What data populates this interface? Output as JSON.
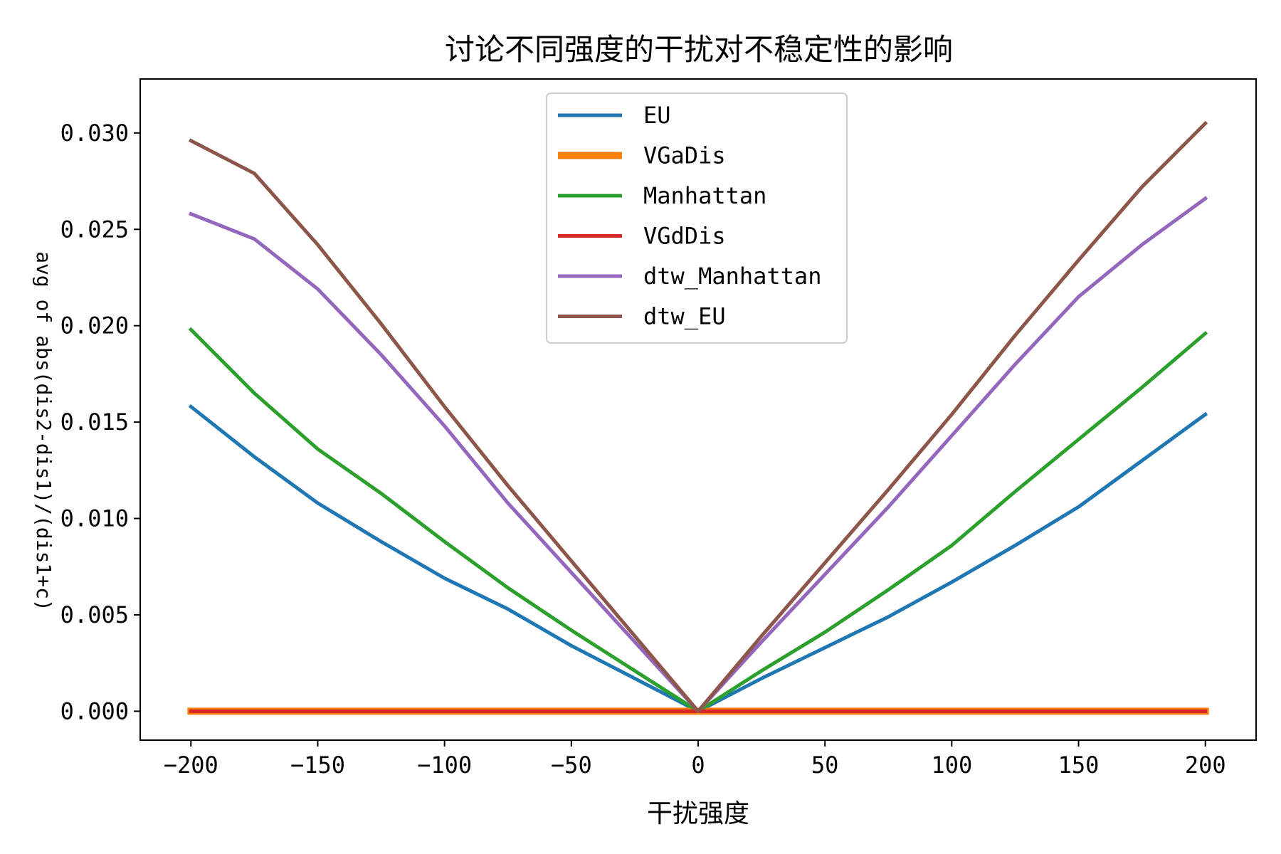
{
  "chart_data": {
    "type": "line",
    "title": "讨论不同强度的干扰对不稳定性的影响",
    "xlabel": "干扰强度",
    "ylabel": "avg of abs(dis2-dis1)/(dis1+c)",
    "xlim": [
      -220,
      220
    ],
    "ylim": [
      -0.0015,
      0.0328
    ],
    "xticks": [
      -200,
      -150,
      -100,
      -50,
      0,
      50,
      100,
      150,
      200
    ],
    "xtick_labels": [
      "−200",
      "−150",
      "−100",
      "−50",
      "0",
      "50",
      "100",
      "150",
      "200"
    ],
    "yticks": [
      0.0,
      0.005,
      0.01,
      0.015,
      0.02,
      0.025,
      0.03
    ],
    "ytick_labels": [
      "0.000",
      "0.005",
      "0.010",
      "0.015",
      "0.020",
      "0.025",
      "0.030"
    ],
    "legend_position": "upper center",
    "grid": false,
    "x": [
      -200,
      -175,
      -150,
      -125,
      -100,
      -75,
      -50,
      -25,
      0,
      25,
      50,
      75,
      100,
      125,
      150,
      175,
      200
    ],
    "series": [
      {
        "name": "EU",
        "color": "#1f77b4",
        "width": 5,
        "values": [
          0.0158,
          0.0132,
          0.0108,
          0.0088,
          0.0069,
          0.0053,
          0.0034,
          0.0017,
          0.0,
          0.0017,
          0.0033,
          0.0049,
          0.0067,
          0.0086,
          0.0106,
          0.013,
          0.0154
        ]
      },
      {
        "name": "VGaDis",
        "color": "#ff7f0e",
        "width": 10,
        "values": [
          0,
          0,
          0,
          0,
          0,
          0,
          0,
          0,
          0,
          0,
          0,
          0,
          0,
          0,
          0,
          0,
          0
        ]
      },
      {
        "name": "Manhattan",
        "color": "#2ca02c",
        "width": 5,
        "values": [
          0.0198,
          0.0165,
          0.0136,
          0.0113,
          0.0088,
          0.0064,
          0.0042,
          0.0021,
          0.0,
          0.0021,
          0.0041,
          0.0063,
          0.0086,
          0.0114,
          0.0141,
          0.0168,
          0.0196
        ]
      },
      {
        "name": "VGdDis",
        "color": "#d62728",
        "width": 5,
        "values": [
          0,
          0,
          0,
          0,
          0,
          0,
          0,
          0,
          0,
          0,
          0,
          0,
          0,
          0,
          0,
          0,
          0
        ]
      },
      {
        "name": "dtw_Manhattan",
        "color": "#9467bd",
        "width": 5,
        "values": [
          0.0258,
          0.0245,
          0.0219,
          0.0185,
          0.0148,
          0.0108,
          0.0072,
          0.0036,
          0.0,
          0.0036,
          0.0071,
          0.0106,
          0.0143,
          0.018,
          0.0215,
          0.0242,
          0.0266
        ]
      },
      {
        "name": "dtw_EU",
        "color": "#8c564b",
        "width": 5,
        "values": [
          0.0296,
          0.0279,
          0.0242,
          0.0201,
          0.0158,
          0.0117,
          0.0078,
          0.0039,
          0.0,
          0.0039,
          0.0077,
          0.0115,
          0.0154,
          0.0195,
          0.0234,
          0.0272,
          0.0305
        ]
      }
    ]
  }
}
